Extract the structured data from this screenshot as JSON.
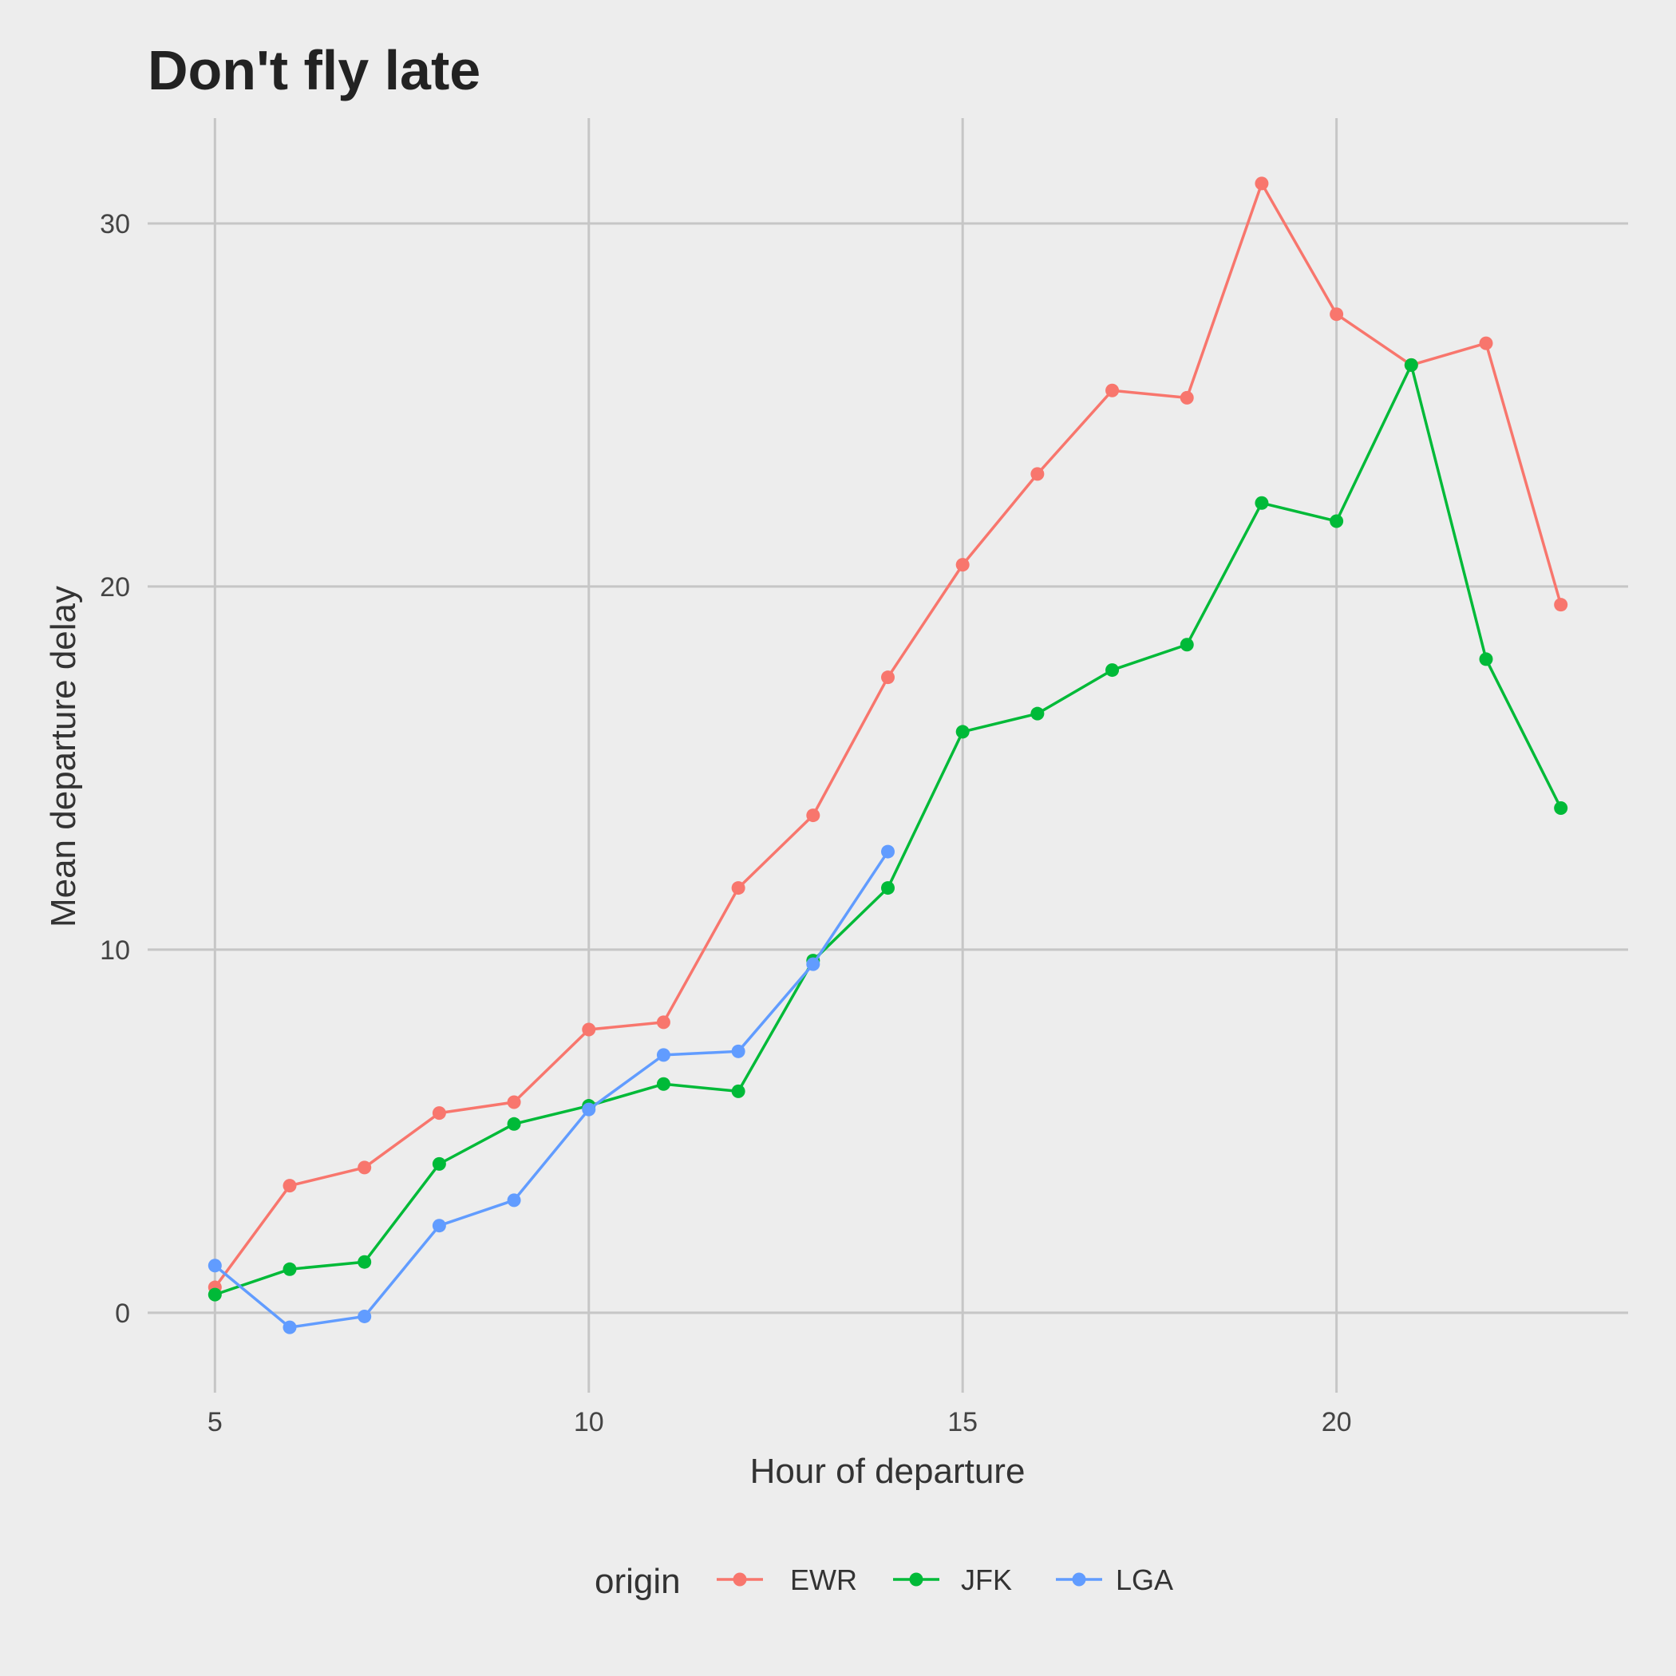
{
  "chart_data": {
    "type": "line",
    "title": "Don't fly late",
    "xlabel": "Hour of departure",
    "ylabel": "Mean departure delay",
    "xlim": [
      4.1,
      23.9
    ],
    "ylim": [
      -2.2,
      32.9
    ],
    "x_ticks": [
      5,
      10,
      15,
      20
    ],
    "y_ticks": [
      0,
      10,
      20,
      30
    ],
    "grid": true,
    "legend_position": "bottom",
    "legend_title": "origin",
    "series": [
      {
        "name": "EWR",
        "color": "#F8766D",
        "x": [
          5,
          6,
          7,
          8,
          9,
          10,
          11,
          12,
          13,
          14,
          15,
          16,
          17,
          18,
          19,
          20,
          21,
          22,
          23
        ],
        "values": [
          0.7,
          3.5,
          4.0,
          5.5,
          5.8,
          7.8,
          8.0,
          11.7,
          13.7,
          17.5,
          20.6,
          23.1,
          25.4,
          25.2,
          31.1,
          27.5,
          26.1,
          26.7,
          19.5
        ]
      },
      {
        "name": "JFK",
        "color": "#00BA38",
        "x": [
          5,
          6,
          7,
          8,
          9,
          10,
          11,
          12,
          13,
          14,
          15,
          16,
          17,
          18,
          19,
          20,
          21,
          22,
          23
        ],
        "values": [
          0.5,
          1.2,
          1.4,
          4.1,
          5.2,
          5.7,
          6.3,
          6.1,
          9.7,
          11.7,
          16.0,
          16.5,
          17.7,
          18.4,
          22.3,
          21.8,
          26.1,
          18.0,
          13.9
        ]
      },
      {
        "name": "LGA",
        "color": "#619CFF",
        "x": [
          5,
          6,
          7,
          8,
          9,
          10,
          11,
          12,
          13,
          14
        ],
        "values": [
          1.3,
          -0.4,
          -0.1,
          2.4,
          3.1,
          5.6,
          7.1,
          7.2,
          9.6,
          12.7
        ]
      }
    ]
  }
}
